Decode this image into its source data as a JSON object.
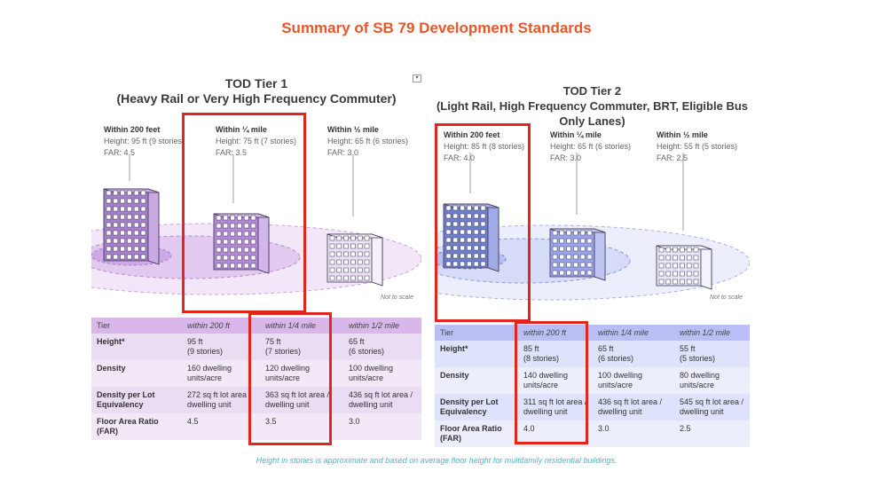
{
  "title": "Summary of SB 79 Development Standards",
  "footnote": "Height in stories is approximate and based on average floor height for multifamily residential buildings.",
  "not_to_scale": "Not to scale",
  "tier1": {
    "title_line1": "TOD Tier 1",
    "title_line2": "(Heavy Rail or Very High Frequency Commuter)",
    "zones": [
      {
        "head": "Within 200 feet",
        "height": "Height: 95 ft (9 stories)",
        "far": "FAR: 4.5"
      },
      {
        "head": "Within ¼ mile",
        "height": "Height: 75 ft (7 stories)",
        "far": "FAR: 3.5"
      },
      {
        "head": "Within ½ mile",
        "height": "Height: 65 ft (6 stories)",
        "far": "FAR: 3.0"
      }
    ],
    "table": {
      "headers": [
        "Tier",
        "within 200 ft",
        "within 1/4 mile",
        "within 1/2 mile"
      ],
      "rows": [
        {
          "label": "Height*",
          "c1": "95 ft\n(9 stories)",
          "c2": "75 ft\n(7 stories)",
          "c3": "65 ft\n(6 stories)"
        },
        {
          "label": "Density",
          "c1": "160 dwelling\nunits/acre",
          "c2": "120 dwelling\nunits/acre",
          "c3": "100 dwelling\nunits/acre"
        },
        {
          "label": "Density per Lot\nEquivalency",
          "c1": "272 sq ft lot area /\ndwelling unit",
          "c2": "363 sq ft lot area /\ndwelling unit",
          "c3": "436 sq ft lot area /\ndwelling unit"
        },
        {
          "label": "Floor Area Ratio\n(FAR)",
          "c1": "4.5",
          "c2": "3.5",
          "c3": "3.0"
        }
      ]
    }
  },
  "tier2": {
    "title_line1": "TOD Tier 2",
    "title_line2": "(Light Rail, High Frequency Commuter, BRT, Eligible Bus",
    "title_line3": "Only Lanes)",
    "zones": [
      {
        "head": "Within 200 feet",
        "height": "Height: 85 ft (8 stories)",
        "far": "FAR: 4.0"
      },
      {
        "head": "Within ¼ mile",
        "height": "Height: 65 ft (6 stories)",
        "far": "FAR: 3.0"
      },
      {
        "head": "Within ½ mile",
        "height": "Height: 55 ft (5 stories)",
        "far": "FAR: 2.5"
      }
    ],
    "table": {
      "headers": [
        "Tier",
        "within 200 ft",
        "within 1/4 mile",
        "within 1/2 mile"
      ],
      "rows": [
        {
          "label": "Height*",
          "c1": "85 ft\n(8 stories)",
          "c2": "65 ft\n(6 stories)",
          "c3": "55 ft\n(5 stories)"
        },
        {
          "label": "Density",
          "c1": "140 dwelling\nunits/acre",
          "c2": "100 dwelling\nunits/acre",
          "c3": "80 dwelling units/acre"
        },
        {
          "label": "Density per Lot\nEquivalency",
          "c1": "311 sq ft lot area /\ndwelling unit",
          "c2": "436 sq ft lot area /\ndwelling unit",
          "c3": "545 sq ft lot area /\ndwelling unit"
        },
        {
          "label": "Floor Area Ratio\n(FAR)",
          "c1": "4.0",
          "c2": "3.0",
          "c3": "2.5"
        }
      ]
    }
  },
  "colors": {
    "accent": "#e8562a",
    "highlight": "#e1261c",
    "tier1_building": "#a57fc9",
    "tier2_building": "#6f7fc9",
    "footnote": "#4eb7c4"
  }
}
